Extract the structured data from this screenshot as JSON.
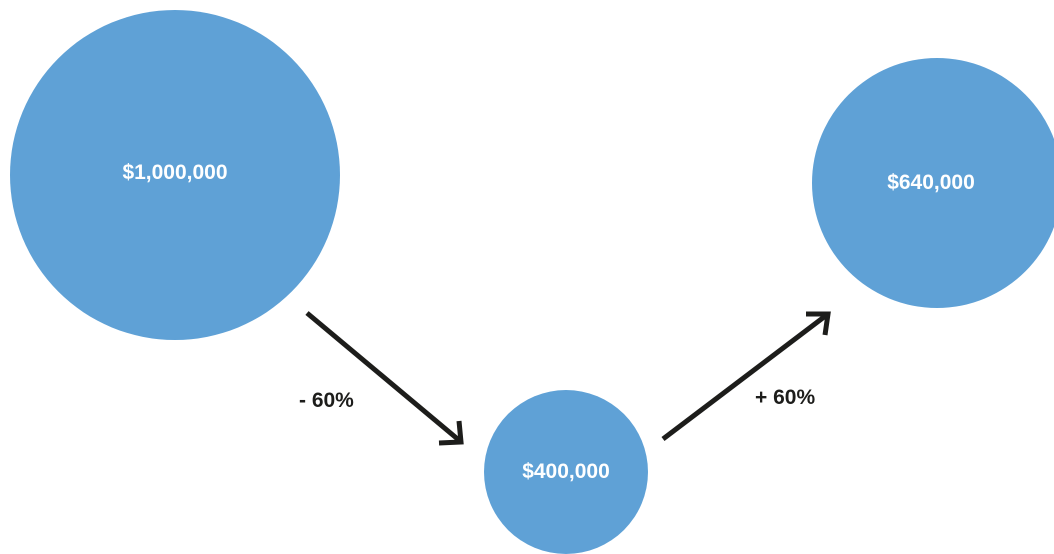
{
  "colors": {
    "circle_fill": "#5fa1d6",
    "circle_text": "#ffffff",
    "arrow": "#1d1d1b",
    "label_text": "#1d1d1b"
  },
  "nodes": {
    "start": {
      "value": "$1,000,000"
    },
    "middle": {
      "value": "$400,000"
    },
    "end": {
      "value": "$640,000"
    }
  },
  "changes": {
    "down": {
      "label": "- 60%"
    },
    "up": {
      "label": "+ 60%"
    }
  }
}
